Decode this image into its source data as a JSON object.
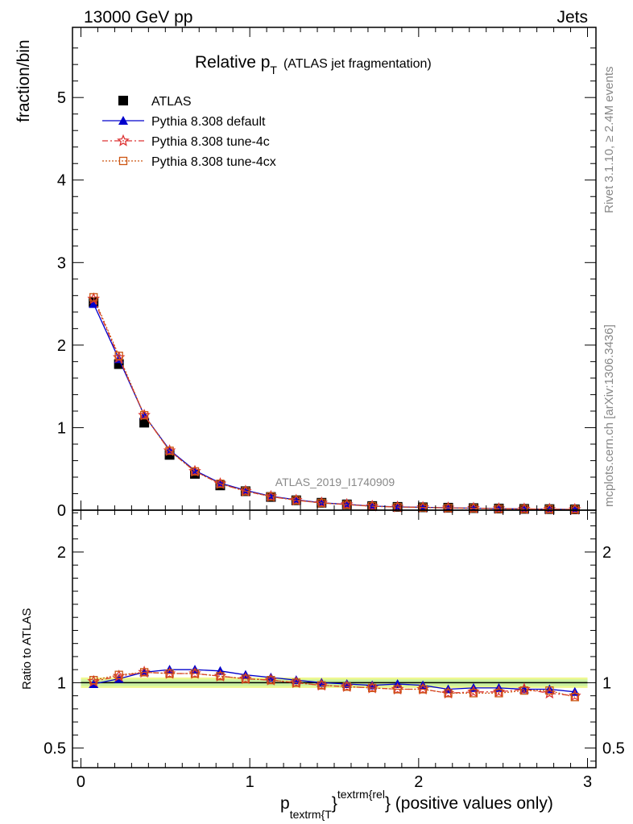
{
  "header": {
    "left": "13000 GeV pp",
    "right": "Jets"
  },
  "title": {
    "main": "Relative p",
    "sub": "T",
    "paren": "(ATLAS jet fragmentation)"
  },
  "side_labels": {
    "rivet": "Rivet 3.1.10, ≥ 2.4M events",
    "mcplots": "mcplots.cern.ch [arXiv:1306.3436]"
  },
  "watermark": "ATLAS_2019_I1740909",
  "axes": {
    "ylabel_top": "fraction/bin",
    "ylabel_bottom": "Ratio to ATLAS",
    "xlabel": {
      "p": "p",
      "sub": "textrm{T",
      "brace1": "}",
      "sup": "textrm{rel",
      "brace2": "}",
      "rest": " (positive values only)"
    }
  },
  "legend": {
    "items": [
      {
        "label": "ATLAS",
        "color": "#000000",
        "marker": "square-filled"
      },
      {
        "label": "Pythia 8.308 default",
        "color": "#0000cc",
        "marker": "triangle-filled"
      },
      {
        "label": "Pythia 8.308 tune-4c",
        "color": "#dd3333",
        "marker": "star-open"
      },
      {
        "label": "Pythia 8.308 tune-4cx",
        "color": "#cc5511",
        "marker": "square-open"
      }
    ]
  },
  "chart_data": {
    "type": "line",
    "x": [
      0.075,
      0.225,
      0.375,
      0.525,
      0.675,
      0.825,
      0.975,
      1.125,
      1.275,
      1.425,
      1.575,
      1.725,
      1.875,
      2.025,
      2.175,
      2.325,
      2.475,
      2.625,
      2.775,
      2.925
    ],
    "xlim": [
      -0.05,
      3.05
    ],
    "xticks": [
      "0",
      "1",
      "2",
      "3"
    ],
    "top": {
      "ylim": [
        0,
        5.85
      ],
      "yticks": [
        "0",
        "1",
        "2",
        "3",
        "4",
        "5"
      ],
      "series": [
        {
          "name": "ATLAS",
          "values": [
            2.52,
            1.77,
            1.06,
            0.67,
            0.44,
            0.3,
            0.23,
            0.16,
            0.12,
            0.09,
            0.07,
            0.05,
            0.04,
            0.035,
            0.03,
            0.025,
            0.02,
            0.016,
            0.013,
            0.01
          ]
        },
        {
          "name": "Pythia 8.308 default",
          "values": [
            2.5,
            1.83,
            1.15,
            0.73,
            0.48,
            0.33,
            0.24,
            0.17,
            0.125,
            0.09,
            0.07,
            0.05,
            0.04,
            0.035,
            0.028,
            0.024,
            0.019,
            0.015,
            0.012,
            0.009
          ]
        },
        {
          "name": "Pythia 8.308 tune-4c",
          "values": [
            2.56,
            1.85,
            1.15,
            0.72,
            0.47,
            0.32,
            0.23,
            0.165,
            0.12,
            0.088,
            0.068,
            0.048,
            0.038,
            0.033,
            0.027,
            0.023,
            0.018,
            0.015,
            0.012,
            0.009
          ]
        },
        {
          "name": "Pythia 8.308 tune-4cx",
          "values": [
            2.58,
            1.87,
            1.15,
            0.72,
            0.47,
            0.32,
            0.23,
            0.165,
            0.12,
            0.088,
            0.067,
            0.048,
            0.038,
            0.033,
            0.027,
            0.023,
            0.018,
            0.015,
            0.012,
            0.009
          ]
        }
      ]
    },
    "ratio": {
      "ylim": [
        0.35,
        2.32
      ],
      "yticks": [
        "0.5",
        "1",
        "2"
      ],
      "band_outer": 0.04,
      "band_inner": 0.025,
      "series": [
        {
          "name": "Pythia 8.308 default",
          "values": [
            0.99,
            1.03,
            1.08,
            1.1,
            1.1,
            1.09,
            1.06,
            1.04,
            1.02,
            1.0,
            0.99,
            0.98,
            0.99,
            0.98,
            0.95,
            0.96,
            0.96,
            0.95,
            0.95,
            0.93
          ]
        },
        {
          "name": "Pythia 8.308 tune-4c",
          "values": [
            1.01,
            1.05,
            1.08,
            1.07,
            1.07,
            1.05,
            1.03,
            1.02,
            1.0,
            0.98,
            0.97,
            0.96,
            0.95,
            0.95,
            0.92,
            0.93,
            0.93,
            0.95,
            0.92,
            0.9
          ]
        },
        {
          "name": "Pythia 8.308 tune-4cx",
          "values": [
            1.02,
            1.06,
            1.08,
            1.07,
            1.07,
            1.05,
            1.03,
            1.02,
            1.0,
            0.98,
            0.97,
            0.96,
            0.95,
            0.95,
            0.92,
            0.92,
            0.92,
            0.94,
            0.94,
            0.89
          ]
        }
      ]
    }
  }
}
